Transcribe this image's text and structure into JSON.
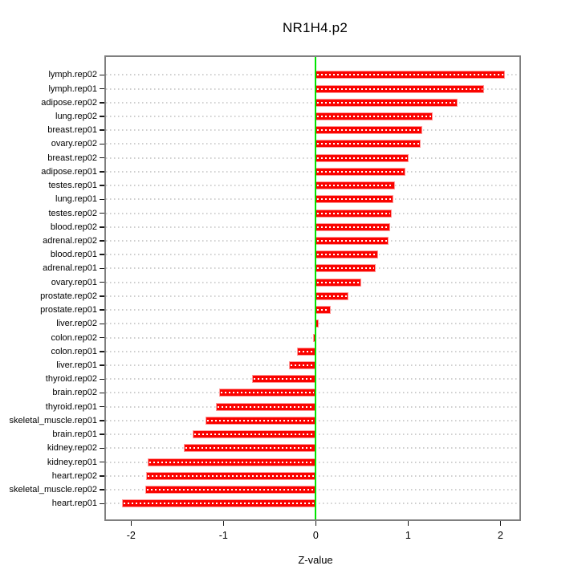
{
  "chart_data": {
    "type": "bar",
    "orientation": "horizontal",
    "title": "NR1H4.p2",
    "xlabel": "Z-value",
    "ylabel": "",
    "xlim": [
      -2.27,
      2.21
    ],
    "x_ticks": [
      -2,
      -1,
      0,
      1,
      2
    ],
    "grid": true,
    "grid_style": "dotted",
    "zero_line": 0,
    "categories": [
      "lymph.rep02",
      "lymph.rep01",
      "adipose.rep02",
      "lung.rep02",
      "breast.rep01",
      "ovary.rep02",
      "breast.rep02",
      "adipose.rep01",
      "testes.rep01",
      "lung.rep01",
      "testes.rep02",
      "blood.rep02",
      "adrenal.rep02",
      "blood.rep01",
      "adrenal.rep01",
      "ovary.rep01",
      "prostate.rep02",
      "prostate.rep01",
      "liver.rep02",
      "colon.rep02",
      "colon.rep01",
      "liver.rep01",
      "thyroid.rep02",
      "brain.rep02",
      "thyroid.rep01",
      "skeletal_muscle.rep01",
      "brain.rep01",
      "kidney.rep02",
      "kidney.rep01",
      "heart.rep02",
      "skeletal_muscle.rep02",
      "heart.rep01"
    ],
    "values": [
      2.05,
      1.82,
      1.54,
      1.27,
      1.15,
      1.14,
      1.01,
      0.97,
      0.86,
      0.84,
      0.82,
      0.81,
      0.79,
      0.68,
      0.65,
      0.49,
      0.35,
      0.16,
      0.03,
      -0.03,
      -0.2,
      -0.29,
      -0.69,
      -1.05,
      -1.08,
      -1.19,
      -1.33,
      -1.43,
      -1.82,
      -1.84,
      -1.85,
      -2.1
    ],
    "colors": {
      "bar_fill": "#fa0300",
      "bar_edge": "#ff9a9a",
      "bar_inner_dots": "#ffffff",
      "zero_line": "#00e400",
      "gridline": "#cfcfcf",
      "axis_box": "#7f7f7f",
      "text": "#000000"
    }
  }
}
